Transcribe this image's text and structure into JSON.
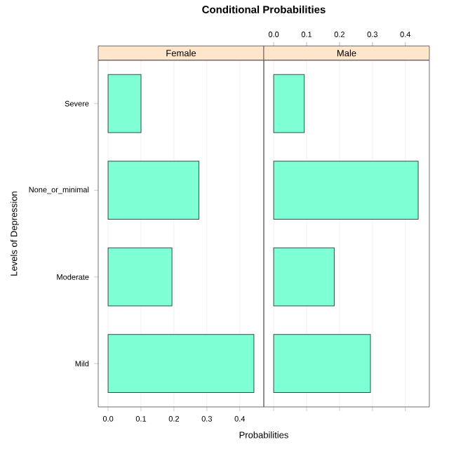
{
  "chart_data": [
    {
      "type": "bar",
      "orientation": "horizontal",
      "title": "Conditional Probabilities",
      "subtitle": "Female",
      "xlabel": "Probabilities",
      "ylabel": "Levels of Depression",
      "categories": [
        "Severe",
        "None_or_minimal",
        "Moderate",
        "Mild"
      ],
      "values": [
        0.1,
        0.276,
        0.194,
        0.443
      ],
      "color": "#7fffd4",
      "xlim": [
        -0.03,
        0.473
      ],
      "xticks": [
        {
          "value": 0,
          "label": "0.0"
        },
        0.1,
        0.2,
        0.3,
        0.4
      ],
      "grid": "x"
    },
    {
      "type": "bar",
      "orientation": "horizontal",
      "subtitle": "Male",
      "categories": [
        null,
        null,
        null,
        null
      ],
      "series": [
        {
          "values": [
            0.093,
            0.439,
            0.184,
            0.294
          ],
          "color": "#7fffd4",
          "axis": "x2"
        }
      ],
      "x2lim": [
        -0.03,
        0.473
      ],
      "x2ticks": [
        {
          "value": 0,
          "label": "0.0"
        },
        0.1,
        0.2,
        0.3,
        0.4
      ],
      "grid": "x",
      "tick_labels": "x"
    }
  ]
}
